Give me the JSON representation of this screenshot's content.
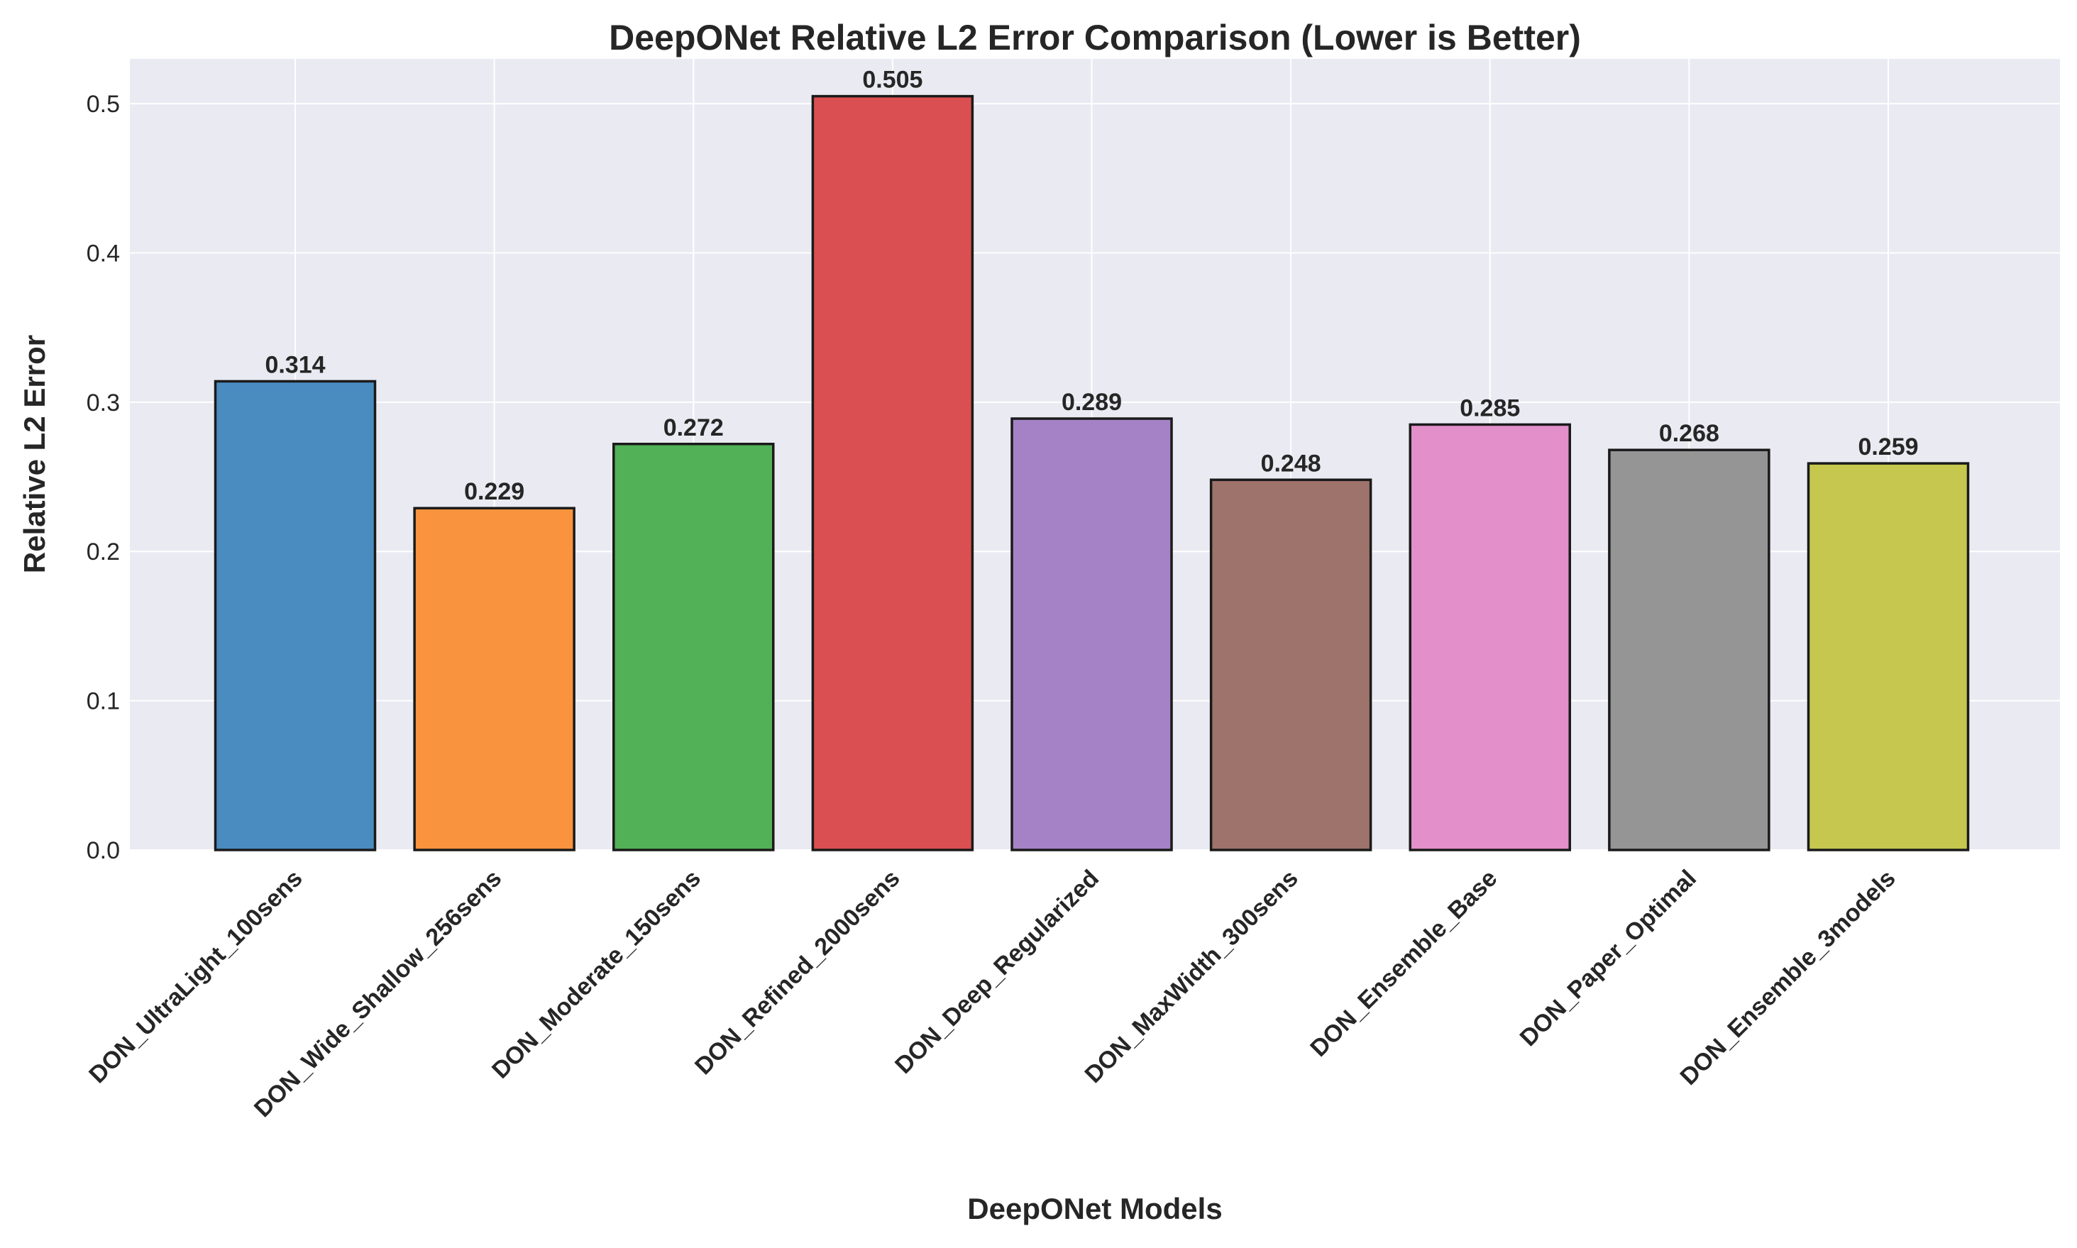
{
  "chart_data": {
    "type": "bar",
    "title": "DeepONet Relative L2 Error Comparison (Lower is Better)",
    "xlabel": "DeepONet Models",
    "ylabel": "Relative L2 Error",
    "ylim": [
      0,
      0.53
    ],
    "yticks": [
      "0.0",
      "0.1",
      "0.2",
      "0.3",
      "0.4",
      "0.5"
    ],
    "grid": true,
    "categories": [
      "DON_UltraLight_100sens",
      "DON_Wide_Shallow_256sens",
      "DON_Moderate_150sens",
      "DON_Refined_2000sens",
      "DON_Deep_Regularized",
      "DON_MaxWidth_300sens",
      "DON_Ensemble_Base",
      "DON_Paper_Optimal",
      "DON_Ensemble_3models"
    ],
    "values": [
      0.314,
      0.229,
      0.272,
      0.505,
      0.289,
      0.248,
      0.285,
      0.268,
      0.259
    ],
    "value_labels": [
      "0.314",
      "0.229",
      "0.272",
      "0.505",
      "0.289",
      "0.248",
      "0.285",
      "0.268",
      "0.259"
    ],
    "colors": [
      "#4a8bc0",
      "#fa933e",
      "#52b056",
      "#da4f51",
      "#a582c6",
      "#9e736b",
      "#e38fca",
      "#959595",
      "#c5c74e"
    ],
    "plot_background": "#eaeaf2",
    "bar_edge_color": "#1a1a1a"
  }
}
